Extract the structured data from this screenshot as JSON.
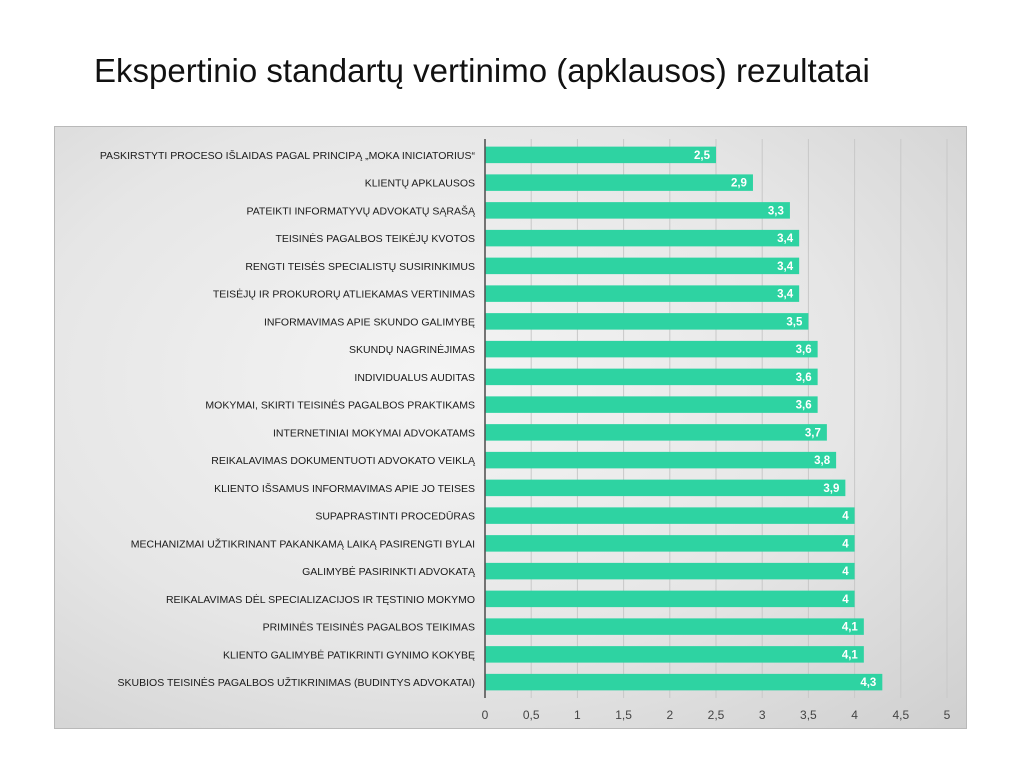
{
  "slide": {
    "title": "Ekspertinio standartų vertinimo (apklausos) rezultatai"
  },
  "colors": {
    "bar": "#2ed3a2",
    "grid": "#c8c8c8",
    "axis": "#555555"
  },
  "chart_data": {
    "type": "bar",
    "orientation": "horizontal",
    "title": "",
    "xlabel": "",
    "ylabel": "",
    "xlim": [
      0,
      5
    ],
    "grid": true,
    "ticks": [
      "0",
      "0,5",
      "1",
      "1,5",
      "2",
      "2,5",
      "3",
      "3,5",
      "4",
      "4,5",
      "5"
    ],
    "categories": [
      "PASKIRSTYTI PROCESO IŠLAIDAS PAGAL PRINCIPĄ „MOKA INICIATORIUS“",
      "KLIENTŲ APKLAUSOS",
      "PATEIKTI INFORMATYVŲ ADVOKATŲ SĄRAŠĄ",
      "TEISINĖS PAGALBOS TEIKĖJŲ KVOTOS",
      "RENGTI TEISĖS SPECIALISTŲ SUSIRINKIMUS",
      "TEISĖJŲ IR PROKURORŲ ATLIEKAMAS VERTINIMAS",
      "INFORMAVIMAS APIE SKUNDO GALIMYBĘ",
      "SKUNDŲ NAGRINĖJIMAS",
      "INDIVIDUALUS AUDITAS",
      "MOKYMAI, SKIRTI TEISINĖS PAGALBOS PRAKTIKAMS",
      "INTERNETINIAI MOKYMAI ADVOKATAMS",
      "REIKALAVIMAS DOKUMENTUOTI ADVOKATO VEIKLĄ",
      "KLIENTO IŠSAMUS INFORMAVIMAS APIE JO TEISES",
      "SUPAPRASTINTI PROCEDŪRAS",
      "MECHANIZMAI UŽTIKRINANT PAKANKAMĄ LAIKĄ PASIRENGTI BYLAI",
      "GALIMYBĖ PASIRINKTI ADVOKATĄ",
      "REIKALAVIMAS DĖL SPECIALIZACIJOS IR TĘSTINIO MOKYMO",
      "PRIMINĖS TEISINĖS PAGALBOS TEIKIMAS",
      "KLIENTO GALIMYBĖ PATIKRINTI GYNIMO KOKYBĘ",
      "SKUBIOS TEISINĖS PAGALBOS UŽTIKRINIMAS (BUDINTYS ADVOKATAI)"
    ],
    "values": [
      2.5,
      2.9,
      3.3,
      3.4,
      3.4,
      3.4,
      3.5,
      3.6,
      3.6,
      3.6,
      3.7,
      3.8,
      3.9,
      4,
      4,
      4,
      4,
      4.1,
      4.1,
      4.3
    ],
    "value_labels": [
      "2,5",
      "2,9",
      "3,3",
      "3,4",
      "3,4",
      "3,4",
      "3,5",
      "3,6",
      "3,6",
      "3,6",
      "3,7",
      "3,8",
      "3,9",
      "4",
      "4",
      "4",
      "4",
      "4,1",
      "4,1",
      "4,3"
    ]
  }
}
